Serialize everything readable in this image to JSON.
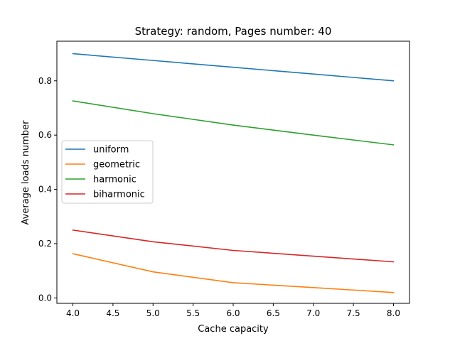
{
  "chart_data": {
    "type": "line",
    "title": "Strategy: random, Pages number: 40",
    "xlabel": "Cache capacity",
    "ylabel": "Average loads number",
    "x": [
      4,
      5,
      6,
      7,
      8
    ],
    "xlim": [
      3.8,
      8.2
    ],
    "ylim": [
      -0.02,
      0.946
    ],
    "xticks": [
      4.0,
      4.5,
      5.0,
      5.5,
      6.0,
      6.5,
      7.0,
      7.5,
      8.0
    ],
    "xtick_labels": [
      "4.0",
      "4.5",
      "5.0",
      "5.5",
      "6.0",
      "6.5",
      "7.0",
      "7.5",
      "8.0"
    ],
    "yticks": [
      0.0,
      0.2,
      0.4,
      0.6,
      0.8
    ],
    "ytick_labels": [
      "0.0",
      "0.2",
      "0.4",
      "0.6",
      "0.8"
    ],
    "grid": false,
    "legend_position": "center-left",
    "series": [
      {
        "name": "uniform",
        "color": "#1f77b4",
        "values": [
          0.9,
          0.875,
          0.85,
          0.825,
          0.8
        ]
      },
      {
        "name": "geometric",
        "color": "#ff7f0e",
        "values": [
          0.163,
          0.096,
          0.056,
          0.038,
          0.02
        ]
      },
      {
        "name": "harmonic",
        "color": "#2ca02c",
        "values": [
          0.726,
          0.679,
          0.637,
          0.6,
          0.564
        ]
      },
      {
        "name": "biharmonic",
        "color": "#d62728",
        "values": [
          0.25,
          0.207,
          0.175,
          0.154,
          0.133
        ]
      }
    ]
  }
}
